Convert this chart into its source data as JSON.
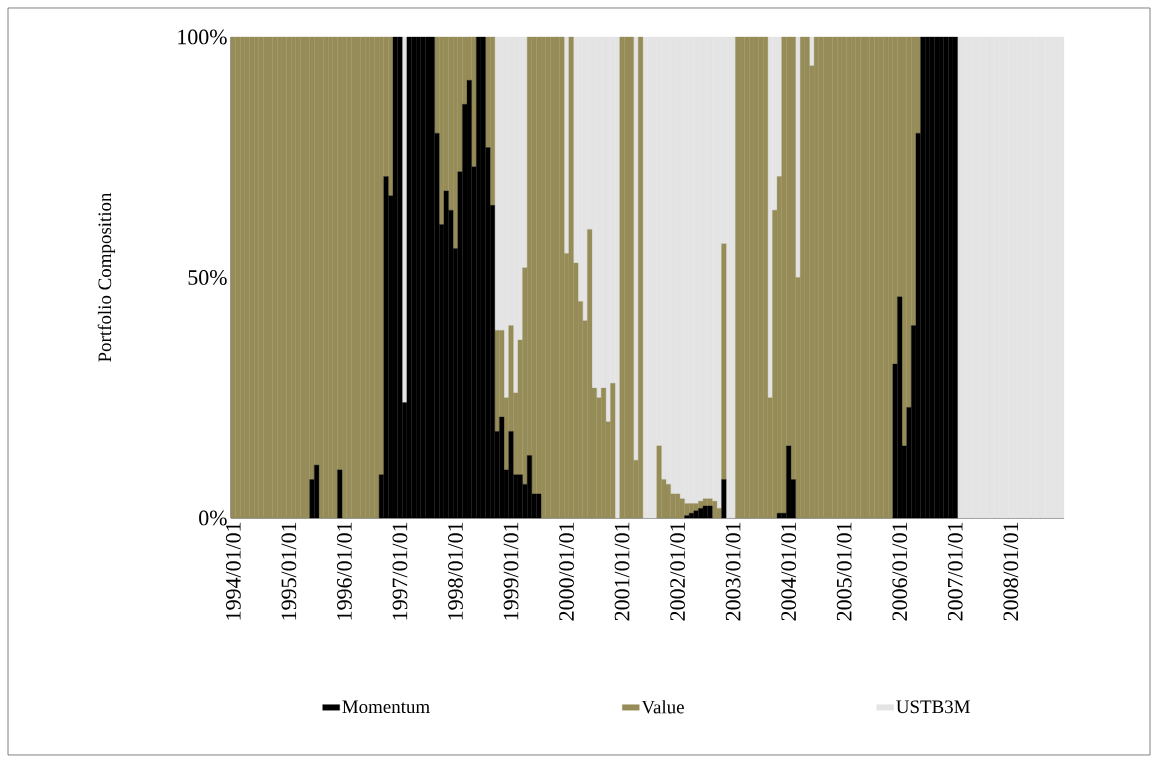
{
  "chart_data": {
    "type": "bar",
    "stacked": true,
    "ylabel": "Portfolio Composition",
    "legend": "bottom",
    "ylim": [
      0,
      100
    ],
    "yticks": [
      {
        "value": 0,
        "label": "0%"
      },
      {
        "value": 50,
        "label": "50%"
      },
      {
        "value": 100,
        "label": "100%"
      }
    ],
    "categories": [
      "1994/01/01",
      null,
      null,
      null,
      null,
      null,
      null,
      null,
      null,
      null,
      null,
      null,
      "1995/01/01",
      null,
      null,
      null,
      null,
      null,
      null,
      null,
      null,
      null,
      null,
      null,
      "1996/01/01",
      null,
      null,
      null,
      null,
      null,
      null,
      null,
      null,
      null,
      null,
      null,
      "1997/01/01",
      null,
      null,
      null,
      null,
      null,
      null,
      null,
      null,
      null,
      null,
      null,
      "1998/01/01",
      null,
      null,
      null,
      null,
      null,
      null,
      null,
      null,
      null,
      null,
      null,
      "1999/01/01",
      null,
      null,
      null,
      null,
      null,
      null,
      null,
      null,
      null,
      null,
      null,
      "2000/01/01",
      null,
      null,
      null,
      null,
      null,
      null,
      null,
      null,
      null,
      null,
      null,
      "2001/01/01",
      null,
      null,
      null,
      null,
      null,
      null,
      null,
      null,
      null,
      null,
      null,
      "2002/01/01",
      null,
      null,
      null,
      null,
      null,
      null,
      null,
      null,
      null,
      null,
      null,
      "2003/01/01",
      null,
      null,
      null,
      null,
      null,
      null,
      null,
      null,
      null,
      null,
      null,
      "2004/01/01",
      null,
      null,
      null,
      null,
      null,
      null,
      null,
      null,
      null,
      null,
      null,
      "2005/01/01",
      null,
      null,
      null,
      null,
      null,
      null,
      null,
      null,
      null,
      null,
      null,
      "2006/01/01",
      null,
      null,
      null,
      null,
      null,
      null,
      null,
      null,
      null,
      null,
      null,
      "2007/01/01",
      null,
      null,
      null,
      null,
      null,
      null,
      null,
      null,
      null,
      null,
      null,
      "2008/01/01",
      null,
      null,
      null,
      null,
      null,
      null,
      null,
      null,
      null,
      null,
      null
    ],
    "series": [
      {
        "name": "Momentum",
        "color": "#000000",
        "values": [
          0,
          0,
          0,
          0,
          0,
          0,
          0,
          0,
          0,
          0,
          0,
          0,
          0,
          0,
          0,
          0,
          0,
          8,
          11,
          0,
          0,
          0,
          0,
          10,
          0,
          0,
          0,
          0,
          0,
          0,
          0,
          0,
          9,
          71,
          67,
          100,
          100,
          24,
          100,
          100,
          100,
          100,
          100,
          100,
          80,
          61,
          68,
          64,
          56,
          72,
          86,
          91,
          73,
          100,
          100,
          77,
          65,
          18,
          21,
          10,
          18,
          9,
          9,
          7,
          13,
          5,
          5,
          0,
          0,
          0,
          0,
          0,
          0,
          0,
          0,
          0,
          0,
          0,
          0,
          0,
          0,
          0,
          0,
          0,
          0,
          0,
          0,
          0,
          0,
          0,
          0,
          0,
          0,
          0,
          0,
          0,
          0,
          0,
          0.5,
          1,
          1.5,
          2,
          2.5,
          2.5,
          0,
          0,
          8,
          0,
          0,
          0,
          0,
          0,
          0,
          0,
          0,
          0,
          0,
          0,
          1,
          1,
          15,
          8,
          0,
          0,
          0,
          0,
          0,
          0,
          0,
          0,
          0,
          0,
          0,
          0,
          0,
          0,
          0,
          0,
          0,
          0,
          0,
          0,
          0,
          32,
          46,
          15,
          23,
          40,
          80,
          100,
          100,
          100,
          100,
          100,
          100,
          100,
          100,
          0,
          0,
          0,
          0,
          0,
          0,
          0,
          0,
          0,
          0,
          0,
          0,
          0,
          0,
          0,
          0,
          0,
          0,
          0,
          0,
          0,
          0,
          0
        ]
      },
      {
        "name": "Value",
        "color": "#968c58",
        "values": [
          100,
          100,
          100,
          100,
          100,
          100,
          100,
          100,
          100,
          100,
          100,
          100,
          100,
          100,
          100,
          100,
          100,
          92,
          89,
          100,
          100,
          100,
          100,
          90,
          100,
          100,
          100,
          100,
          100,
          100,
          100,
          100,
          91,
          29,
          33,
          0,
          0,
          0,
          0,
          0,
          0,
          0,
          0,
          0,
          20,
          39,
          32,
          36,
          44,
          28,
          14,
          9,
          27,
          0,
          0,
          23,
          35,
          21,
          18,
          15,
          22,
          17,
          28,
          45,
          87,
          95,
          95,
          100,
          100,
          100,
          100,
          100,
          55,
          100,
          53,
          45,
          41,
          60,
          27,
          25,
          27,
          20,
          28,
          0,
          100,
          100,
          100,
          12,
          100,
          0,
          0,
          0,
          15,
          8,
          7,
          5,
          5,
          4,
          2.5,
          2,
          1.5,
          1.5,
          1.5,
          1.5,
          3.5,
          2,
          49,
          0,
          0,
          100,
          100,
          100,
          100,
          100,
          100,
          100,
          25,
          64,
          70,
          99,
          85,
          92,
          50,
          100,
          100,
          94,
          100,
          100,
          100,
          100,
          100,
          100,
          100,
          100,
          100,
          100,
          100,
          100,
          100,
          100,
          100,
          100,
          100,
          68,
          54,
          85,
          77,
          60,
          20,
          0,
          0,
          0,
          0,
          0,
          0,
          0,
          0,
          0,
          0,
          0,
          0,
          0,
          0,
          0,
          0,
          0,
          0,
          0,
          0,
          0,
          0,
          0,
          0,
          0,
          0,
          0,
          0,
          0,
          0,
          0
        ]
      },
      {
        "name": "USTB3M",
        "color": "#e4e4e4",
        "values": [
          0,
          0,
          0,
          0,
          0,
          0,
          0,
          0,
          0,
          0,
          0,
          0,
          0,
          0,
          0,
          0,
          0,
          0,
          0,
          0,
          0,
          0,
          0,
          0,
          0,
          0,
          0,
          0,
          0,
          0,
          0,
          0,
          0,
          0,
          0,
          0,
          0,
          76,
          0,
          0,
          0,
          0,
          0,
          0,
          0,
          0,
          0,
          0,
          0,
          0,
          0,
          0,
          0,
          0,
          0,
          0,
          0,
          61,
          61,
          75,
          60,
          74,
          63,
          48,
          0,
          0,
          0,
          0,
          0,
          0,
          0,
          0,
          45,
          0,
          47,
          55,
          59,
          40,
          73,
          75,
          73,
          80,
          72,
          100,
          0,
          0,
          0,
          88,
          0,
          100,
          100,
          100,
          85,
          92,
          93,
          95,
          95,
          96,
          97,
          97,
          97,
          96.5,
          96,
          96,
          96.5,
          98,
          43,
          100,
          100,
          0,
          0,
          0,
          0,
          0,
          0,
          0,
          75,
          36,
          29,
          0,
          0,
          0,
          50,
          0,
          0,
          6,
          0,
          0,
          0,
          0,
          0,
          0,
          0,
          0,
          0,
          0,
          0,
          0,
          0,
          0,
          0,
          0,
          0,
          0,
          0,
          0,
          0,
          0,
          0,
          0,
          0,
          0,
          0,
          0,
          0,
          0,
          0,
          100,
          100,
          100,
          100,
          100,
          100,
          100,
          100,
          100,
          100,
          100,
          100,
          100,
          100,
          100,
          100,
          100,
          100,
          100,
          100,
          100,
          100,
          100
        ]
      }
    ]
  }
}
